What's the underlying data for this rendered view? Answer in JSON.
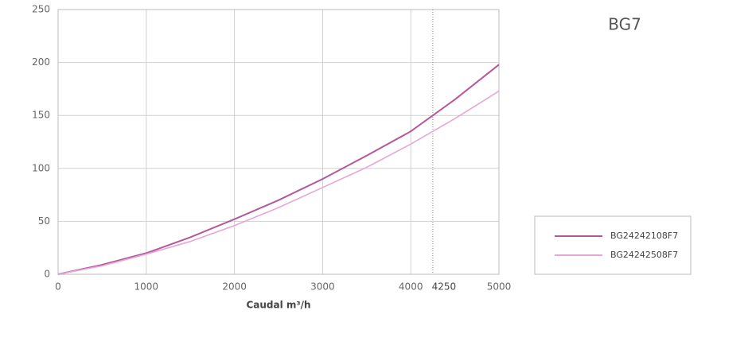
{
  "chart_data": {
    "type": "line",
    "label": "BG7",
    "xlabel": "Caudal m³/h",
    "x": [
      0,
      500,
      1000,
      1500,
      2000,
      2500,
      3000,
      3500,
      4000,
      4500,
      5000
    ],
    "series": [
      {
        "name": "BG24242108F7",
        "color": "#b5589a",
        "values": [
          0,
          9,
          20,
          35,
          52,
          70,
          90,
          112,
          135,
          165,
          198
        ]
      },
      {
        "name": "BG24242508F7",
        "color": "#e8a6d8",
        "values": [
          0,
          8,
          19,
          31,
          46,
          63,
          82,
          101,
          123,
          147,
          173
        ]
      }
    ],
    "xlim": [
      0,
      5000
    ],
    "xticks": [
      0,
      1000,
      2000,
      3000,
      4000,
      5000
    ],
    "ylim": [
      0,
      250
    ],
    "yticks": [
      0,
      50,
      100,
      150,
      200,
      250
    ],
    "vline": 4250,
    "grid": true
  }
}
